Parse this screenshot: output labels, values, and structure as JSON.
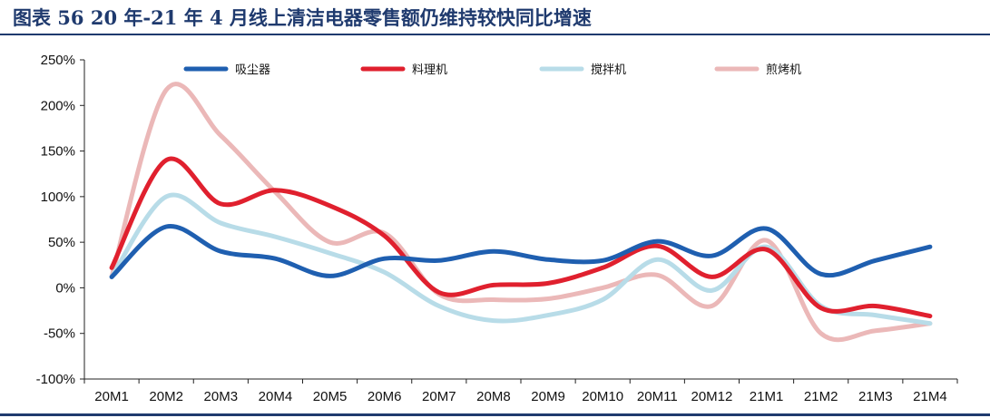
{
  "header": {
    "title": "图表 56   20 年-21 年 4 月线上清洁电器零售额仍维持较快同比增速"
  },
  "colors": {
    "title": "#1f3a6e",
    "series": [
      "#1f5fb0",
      "#e0202e",
      "#b8dce8",
      "#ebb8b8"
    ]
  },
  "chart_data": {
    "type": "line",
    "title": "",
    "xlabel": "",
    "ylabel": "",
    "categories": [
      "20M1",
      "20M2",
      "20M3",
      "20M4",
      "20M5",
      "20M6",
      "20M7",
      "20M8",
      "20M9",
      "20M10",
      "20M11",
      "20M12",
      "21M1",
      "21M2",
      "21M3",
      "21M4"
    ],
    "ylim": [
      -100,
      250
    ],
    "yticks": [
      -100,
      -50,
      0,
      50,
      100,
      150,
      200,
      250
    ],
    "ytick_labels": [
      "-100%",
      "-50%",
      "0%",
      "50%",
      "100%",
      "150%",
      "200%",
      "250%"
    ],
    "grid": false,
    "legend_position": "top",
    "smooth": true,
    "series": [
      {
        "name": "吸尘器",
        "values": [
          12,
          67,
          40,
          32,
          13,
          32,
          30,
          40,
          31,
          30,
          51,
          35,
          65,
          15,
          30,
          45
        ]
      },
      {
        "name": "料理机",
        "values": [
          22,
          140,
          92,
          107,
          90,
          57,
          -5,
          3,
          5,
          22,
          46,
          12,
          42,
          -22,
          -20,
          -31
        ]
      },
      {
        "name": "搅拌机",
        "values": [
          12,
          100,
          71,
          56,
          38,
          17,
          -20,
          -36,
          -30,
          -13,
          31,
          -3,
          45,
          -20,
          -30,
          -39
        ]
      },
      {
        "name": "煎烤机",
        "values": [
          12,
          217,
          167,
          105,
          50,
          60,
          -7,
          -13,
          -12,
          0,
          14,
          -20,
          52,
          -50,
          -47,
          -39
        ]
      }
    ]
  }
}
